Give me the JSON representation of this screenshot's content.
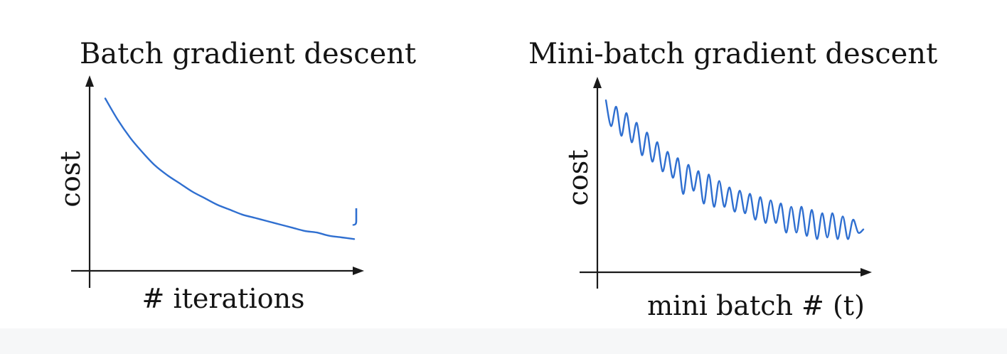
{
  "accent_color": "#2f6fd0",
  "chart_data": [
    {
      "type": "line",
      "title": "Batch gradient descent",
      "xlabel": "# iterations",
      "ylabel": "cost",
      "annotation": "J",
      "grid": false,
      "legend": "none",
      "xlim": [
        0,
        100
      ],
      "ylim": [
        0,
        100
      ],
      "series": [
        {
          "x": [
            0,
            5,
            10,
            15,
            20,
            25,
            30,
            35,
            40,
            45,
            50,
            55,
            60,
            65,
            70,
            75,
            80,
            85,
            90,
            95,
            100
          ],
          "values": [
            95,
            82,
            71,
            62,
            54,
            48,
            43,
            38,
            34,
            30,
            27,
            24,
            22,
            20,
            18,
            16,
            14,
            13,
            11,
            10,
            9
          ]
        }
      ]
    },
    {
      "type": "line",
      "title": "Mini-batch gradient descent",
      "xlabel": "mini batch # (t)",
      "ylabel": "cost",
      "grid": false,
      "legend": "none",
      "xlim": [
        0,
        100
      ],
      "ylim": [
        0,
        100
      ],
      "series": [
        {
          "x": [
            0,
            2,
            4,
            6,
            8,
            10,
            12,
            14,
            16,
            18,
            20,
            22,
            24,
            26,
            28,
            30,
            32,
            34,
            36,
            38,
            40,
            42,
            44,
            46,
            48,
            50,
            52,
            54,
            56,
            58,
            60,
            62,
            64,
            66,
            68,
            70,
            72,
            74,
            76,
            78,
            80,
            82,
            84,
            86,
            88,
            90,
            92,
            94,
            96,
            98,
            100
          ],
          "values": [
            96,
            80,
            92,
            74,
            88,
            70,
            82,
            62,
            76,
            58,
            70,
            52,
            64,
            48,
            60,
            38,
            56,
            40,
            52,
            32,
            50,
            30,
            46,
            30,
            42,
            27,
            40,
            26,
            38,
            22,
            36,
            20,
            34,
            20,
            32,
            14,
            30,
            14,
            30,
            12,
            28,
            10,
            26,
            11,
            26,
            10,
            24,
            10,
            22,
            14,
            16
          ]
        }
      ]
    }
  ]
}
